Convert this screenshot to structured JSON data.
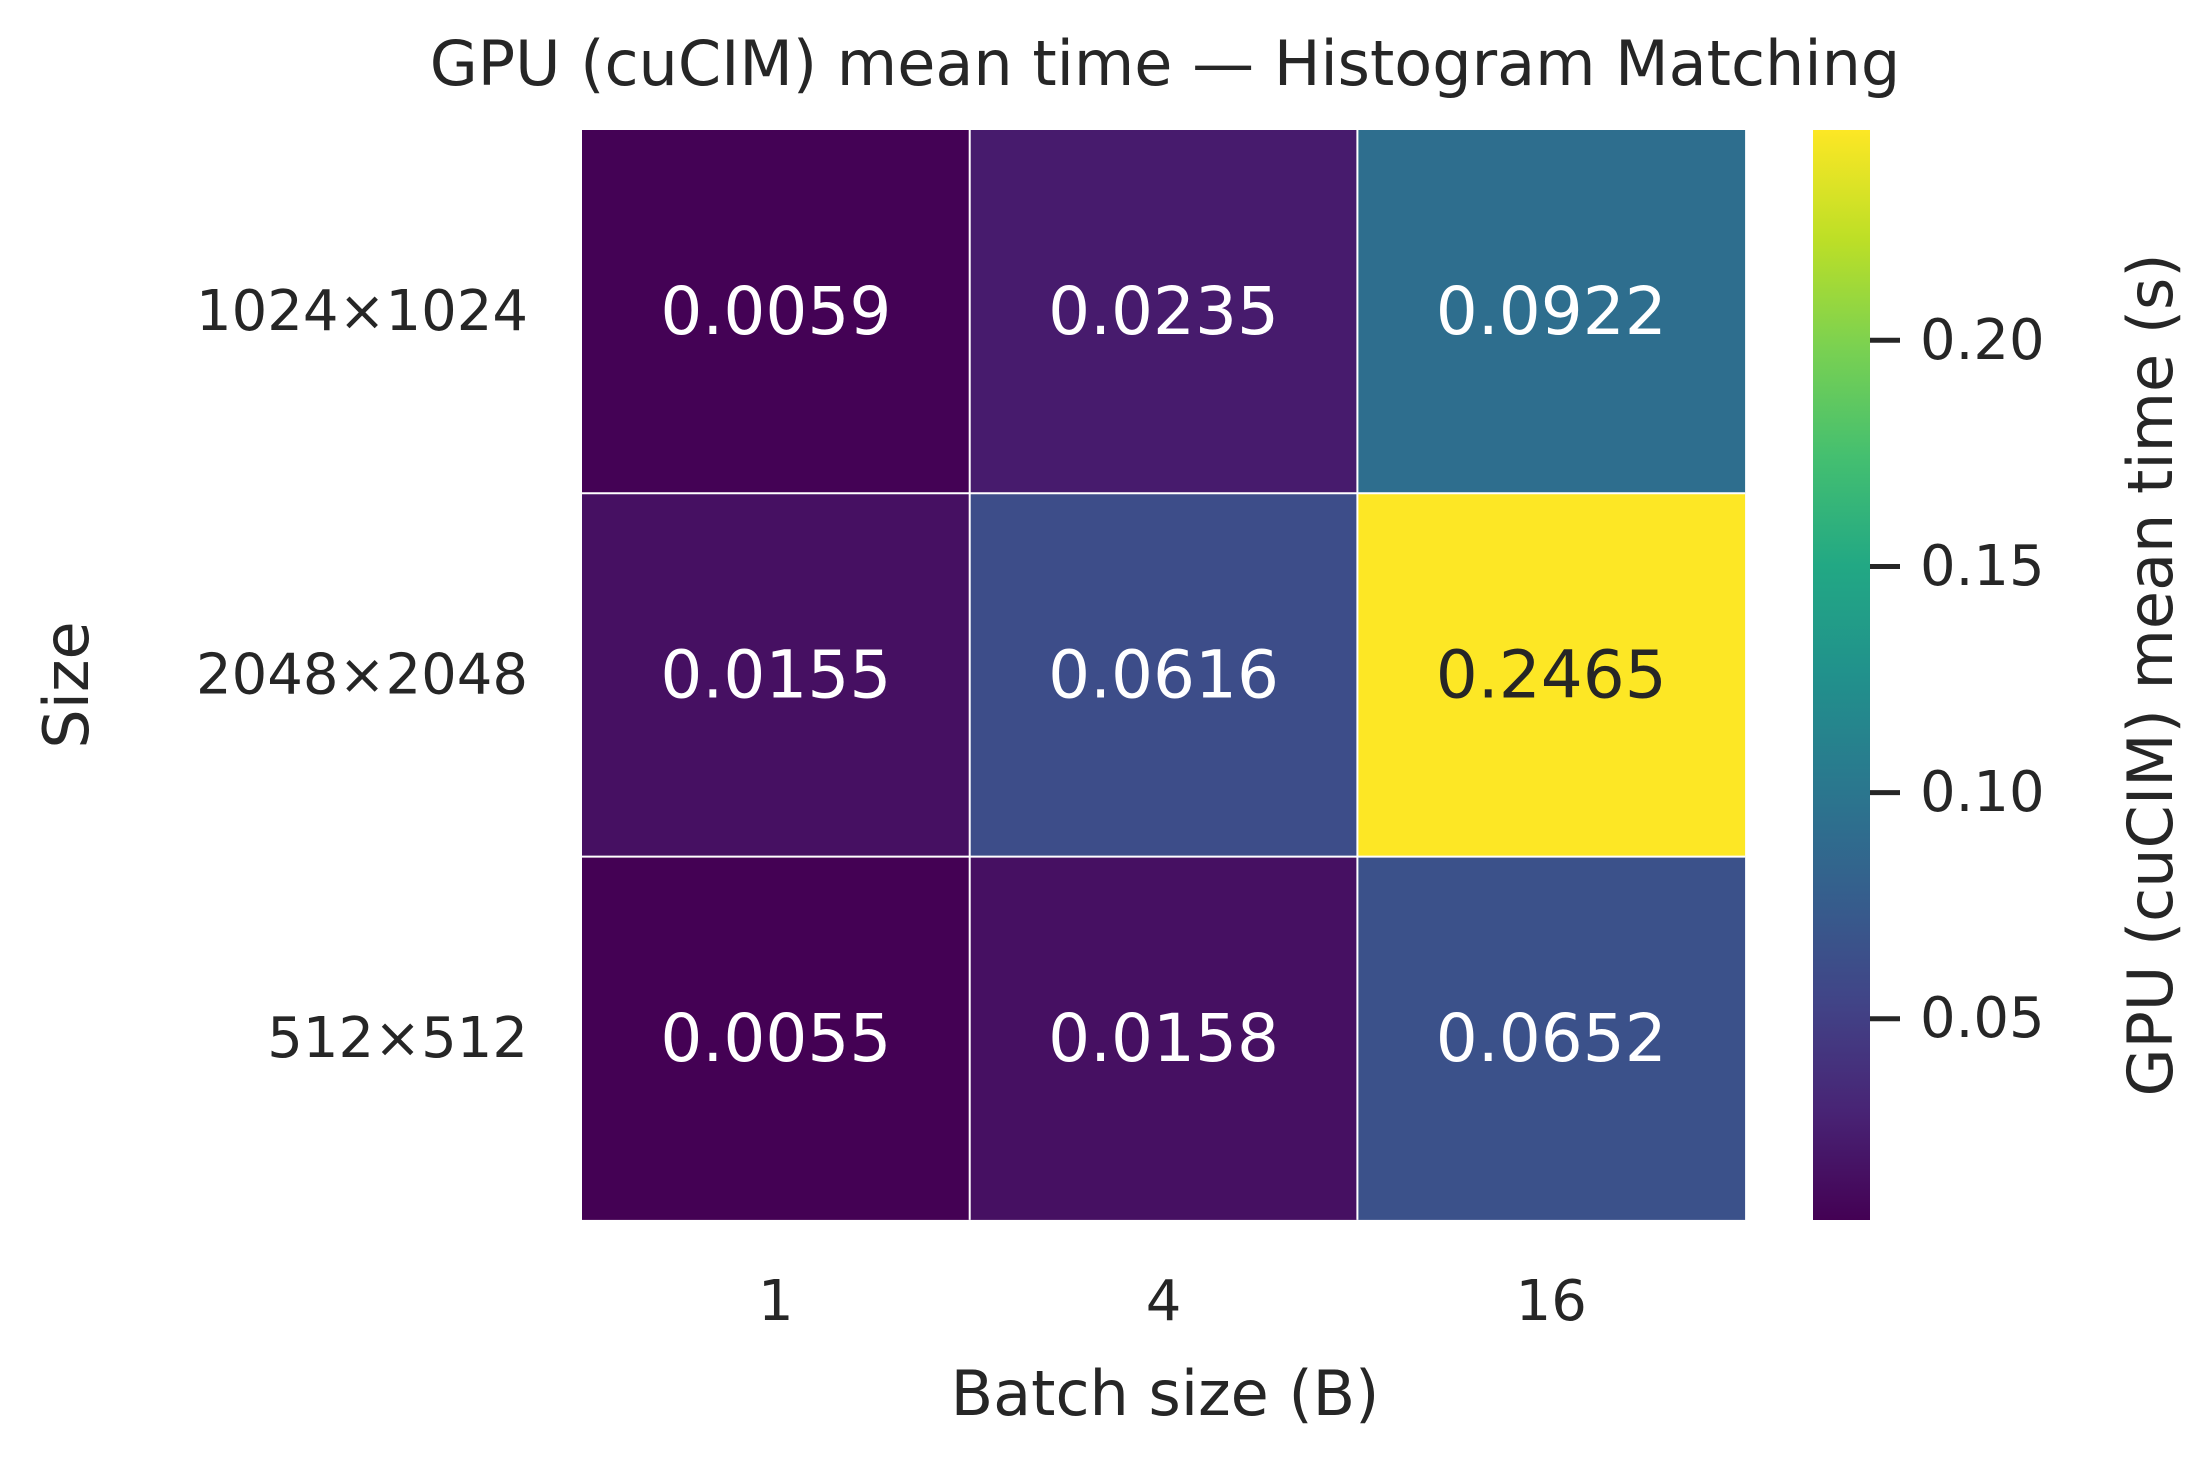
{
  "chart_data": {
    "type": "heatmap",
    "title": "GPU (cuCIM) mean time — Histogram Matching",
    "xlabel": "Batch size (B)",
    "ylabel": "Size",
    "x_categories": [
      "1",
      "4",
      "16"
    ],
    "y_categories": [
      "1024×1024",
      "2048×2048",
      "512×512"
    ],
    "values": [
      [
        0.0059,
        0.0235,
        0.0922
      ],
      [
        0.0155,
        0.0616,
        0.2465
      ],
      [
        0.0055,
        0.0158,
        0.0652
      ]
    ],
    "cell_labels": [
      [
        "0.0059",
        "0.0235",
        "0.0922"
      ],
      [
        "0.0155",
        "0.0616",
        "0.2465"
      ],
      [
        "0.0055",
        "0.0158",
        "0.0652"
      ]
    ],
    "colormap": "viridis",
    "colorbar": {
      "label": "GPU (cuCIM) mean time (s)",
      "range": [
        0.0055,
        0.2465
      ],
      "ticks": [
        0.05,
        0.1,
        0.15,
        0.2
      ],
      "tick_labels": [
        "0.05",
        "0.10",
        "0.15",
        "0.20"
      ]
    },
    "grid_line_color": "#ffffff",
    "text_color_dark": "#262626",
    "text_color_light": "#ffffff"
  }
}
